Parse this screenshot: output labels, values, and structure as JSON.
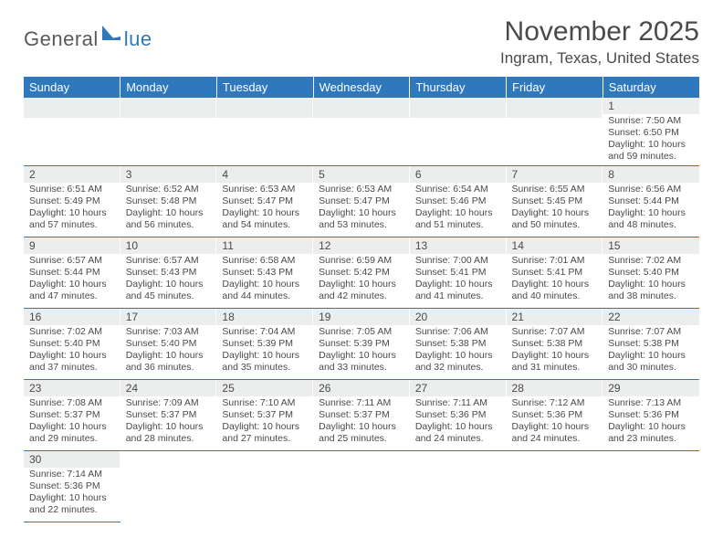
{
  "logo": {
    "text1": "General",
    "text2": "lue"
  },
  "title": "November 2025",
  "location": "Ingram, Texas, United States",
  "style": {
    "header_bg": "#2f78bd",
    "header_fg": "#ffffff",
    "daynum_bg": "#eceded",
    "border_color": "#2f78bd",
    "text_color": "#4a4a4a",
    "logo_accent": "#2f78bd",
    "month_fontsize": 30,
    "location_fontsize": 17,
    "dayhdr_fontsize": 13,
    "cell_fontsize": 10.5
  },
  "day_headers": [
    "Sunday",
    "Monday",
    "Tuesday",
    "Wednesday",
    "Thursday",
    "Friday",
    "Saturday"
  ],
  "weeks": [
    [
      null,
      null,
      null,
      null,
      null,
      null,
      {
        "n": "1",
        "sr": "7:50 AM",
        "ss": "6:50 PM",
        "dh": "10",
        "dm": "59"
      }
    ],
    [
      {
        "n": "2",
        "sr": "6:51 AM",
        "ss": "5:49 PM",
        "dh": "10",
        "dm": "57"
      },
      {
        "n": "3",
        "sr": "6:52 AM",
        "ss": "5:48 PM",
        "dh": "10",
        "dm": "56"
      },
      {
        "n": "4",
        "sr": "6:53 AM",
        "ss": "5:47 PM",
        "dh": "10",
        "dm": "54"
      },
      {
        "n": "5",
        "sr": "6:53 AM",
        "ss": "5:47 PM",
        "dh": "10",
        "dm": "53"
      },
      {
        "n": "6",
        "sr": "6:54 AM",
        "ss": "5:46 PM",
        "dh": "10",
        "dm": "51"
      },
      {
        "n": "7",
        "sr": "6:55 AM",
        "ss": "5:45 PM",
        "dh": "10",
        "dm": "50"
      },
      {
        "n": "8",
        "sr": "6:56 AM",
        "ss": "5:44 PM",
        "dh": "10",
        "dm": "48"
      }
    ],
    [
      {
        "n": "9",
        "sr": "6:57 AM",
        "ss": "5:44 PM",
        "dh": "10",
        "dm": "47"
      },
      {
        "n": "10",
        "sr": "6:57 AM",
        "ss": "5:43 PM",
        "dh": "10",
        "dm": "45"
      },
      {
        "n": "11",
        "sr": "6:58 AM",
        "ss": "5:43 PM",
        "dh": "10",
        "dm": "44"
      },
      {
        "n": "12",
        "sr": "6:59 AM",
        "ss": "5:42 PM",
        "dh": "10",
        "dm": "42"
      },
      {
        "n": "13",
        "sr": "7:00 AM",
        "ss": "5:41 PM",
        "dh": "10",
        "dm": "41"
      },
      {
        "n": "14",
        "sr": "7:01 AM",
        "ss": "5:41 PM",
        "dh": "10",
        "dm": "40"
      },
      {
        "n": "15",
        "sr": "7:02 AM",
        "ss": "5:40 PM",
        "dh": "10",
        "dm": "38"
      }
    ],
    [
      {
        "n": "16",
        "sr": "7:02 AM",
        "ss": "5:40 PM",
        "dh": "10",
        "dm": "37"
      },
      {
        "n": "17",
        "sr": "7:03 AM",
        "ss": "5:40 PM",
        "dh": "10",
        "dm": "36"
      },
      {
        "n": "18",
        "sr": "7:04 AM",
        "ss": "5:39 PM",
        "dh": "10",
        "dm": "35"
      },
      {
        "n": "19",
        "sr": "7:05 AM",
        "ss": "5:39 PM",
        "dh": "10",
        "dm": "33"
      },
      {
        "n": "20",
        "sr": "7:06 AM",
        "ss": "5:38 PM",
        "dh": "10",
        "dm": "32"
      },
      {
        "n": "21",
        "sr": "7:07 AM",
        "ss": "5:38 PM",
        "dh": "10",
        "dm": "31"
      },
      {
        "n": "22",
        "sr": "7:07 AM",
        "ss": "5:38 PM",
        "dh": "10",
        "dm": "30"
      }
    ],
    [
      {
        "n": "23",
        "sr": "7:08 AM",
        "ss": "5:37 PM",
        "dh": "10",
        "dm": "29"
      },
      {
        "n": "24",
        "sr": "7:09 AM",
        "ss": "5:37 PM",
        "dh": "10",
        "dm": "28"
      },
      {
        "n": "25",
        "sr": "7:10 AM",
        "ss": "5:37 PM",
        "dh": "10",
        "dm": "27"
      },
      {
        "n": "26",
        "sr": "7:11 AM",
        "ss": "5:37 PM",
        "dh": "10",
        "dm": "25"
      },
      {
        "n": "27",
        "sr": "7:11 AM",
        "ss": "5:36 PM",
        "dh": "10",
        "dm": "24"
      },
      {
        "n": "28",
        "sr": "7:12 AM",
        "ss": "5:36 PM",
        "dh": "10",
        "dm": "24"
      },
      {
        "n": "29",
        "sr": "7:13 AM",
        "ss": "5:36 PM",
        "dh": "10",
        "dm": "23"
      }
    ],
    [
      {
        "n": "30",
        "sr": "7:14 AM",
        "ss": "5:36 PM",
        "dh": "10",
        "dm": "22"
      },
      null,
      null,
      null,
      null,
      null,
      null
    ]
  ],
  "labels": {
    "sunrise": "Sunrise:",
    "sunset": "Sunset:",
    "daylight": "Daylight:",
    "hours": "hours",
    "and": "and",
    "minutes": "minutes."
  }
}
